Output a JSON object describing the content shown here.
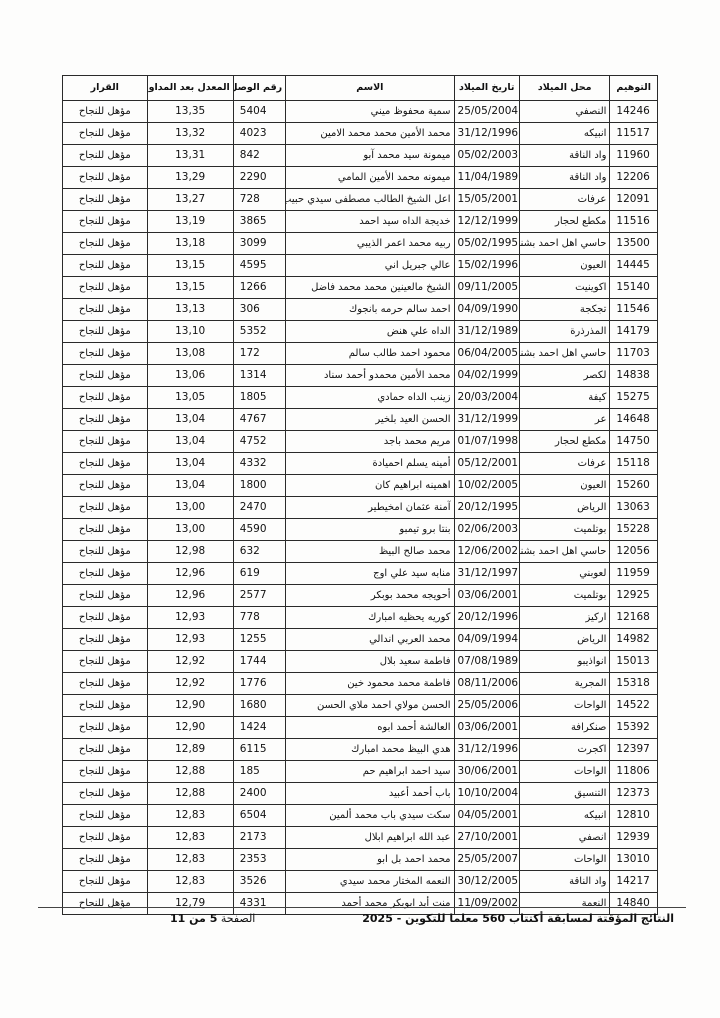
{
  "document": {
    "table": {
      "headers": [
        "التوهيم",
        "محل الميلاد",
        "تاريخ الميلاد",
        "الاسم",
        "رقم الوصل",
        "المعدل بعد المداولات",
        "القرار"
      ],
      "rows": [
        {
          "id": "14246",
          "birthplace": "النصفي",
          "birthdate": "25/05/2004",
          "name": "سمية محفوظ ميني",
          "receipt": "5404",
          "average": "13,35",
          "decision": "مؤهل للنجاح"
        },
        {
          "id": "11517",
          "birthplace": "انبيكه",
          "birthdate": "31/12/1996",
          "name": "محمد الأمين محمد محمد الامين",
          "receipt": "4023",
          "average": "13,32",
          "decision": "مؤهل للنجاح"
        },
        {
          "id": "11960",
          "birthplace": "واد الناقة",
          "birthdate": "05/02/2003",
          "name": "ميمونة سيد محمد آبو",
          "receipt": "842",
          "average": "13,31",
          "decision": "مؤهل للنجاح"
        },
        {
          "id": "12206",
          "birthplace": "واد الناقة",
          "birthdate": "11/04/1989",
          "name": "ميمونه محمد الأمين المامي",
          "receipt": "2290",
          "average": "13,29",
          "decision": "مؤهل للنجاح"
        },
        {
          "id": "12091",
          "birthplace": "عرفات",
          "birthdate": "15/05/2001",
          "name": "اعل الشيخ الطالب مصطفى سيدي حبيب الله",
          "receipt": "728",
          "average": "13,27",
          "decision": "مؤهل للنجاح"
        },
        {
          "id": "11516",
          "birthplace": "مكطع لحجار",
          "birthdate": "12/12/1999",
          "name": "خديجة الداه سيد احمد",
          "receipt": "3865",
          "average": "13,19",
          "decision": "مؤهل للنجاح"
        },
        {
          "id": "13500",
          "birthplace": "حاسي اهل احمد بشنه",
          "birthdate": "05/02/1995",
          "name": "ربيه محمد اعمر الذيبي",
          "receipt": "3099",
          "average": "13,18",
          "decision": "مؤهل للنجاح"
        },
        {
          "id": "14445",
          "birthplace": "العيون",
          "birthdate": "15/02/1996",
          "name": "عالي جبريل اني",
          "receipt": "4595",
          "average": "13,15",
          "decision": "مؤهل للنجاح"
        },
        {
          "id": "15140",
          "birthplace": "اكوينيت",
          "birthdate": "09/11/2005",
          "name": "الشيخ مالعينين محمد محمد فاضل",
          "receipt": "1266",
          "average": "13,15",
          "decision": "مؤهل للنجاح"
        },
        {
          "id": "11546",
          "birthplace": "تجكجة",
          "birthdate": "04/09/1990",
          "name": "احمد سالم حرمه بانجوك",
          "receipt": "306",
          "average": "13,13",
          "decision": "مؤهل للنجاح"
        },
        {
          "id": "14179",
          "birthplace": "المذرذرة",
          "birthdate": "31/12/1989",
          "name": "الداه علي هنض",
          "receipt": "5352",
          "average": "13,10",
          "decision": "مؤهل للنجاح"
        },
        {
          "id": "11703",
          "birthplace": "حاسي اهل احمد بشنه",
          "birthdate": "06/04/2005",
          "name": "محمود احمد طالب سالم",
          "receipt": "172",
          "average": "13,08",
          "decision": "مؤهل للنجاح"
        },
        {
          "id": "14838",
          "birthplace": "لكصر",
          "birthdate": "04/02/1999",
          "name": "محمد الأمين محمدو أحمد سناد",
          "receipt": "1314",
          "average": "13,06",
          "decision": "مؤهل للنجاح"
        },
        {
          "id": "15275",
          "birthplace": "كيفة",
          "birthdate": "20/03/2004",
          "name": "زينب الداه حمادي",
          "receipt": "1805",
          "average": "13,05",
          "decision": "مؤهل للنجاح"
        },
        {
          "id": "14648",
          "birthplace": "عر",
          "birthdate": "31/12/1999",
          "name": "الحسن العيد بلخير",
          "receipt": "4767",
          "average": "13,04",
          "decision": "مؤهل للنجاح"
        },
        {
          "id": "14750",
          "birthplace": "مكطع لحجار",
          "birthdate": "01/07/1998",
          "name": "مريم محمد باجد",
          "receipt": "4752",
          "average": "13,04",
          "decision": "مؤهل للنجاح"
        },
        {
          "id": "15118",
          "birthplace": "عرفات",
          "birthdate": "05/12/2001",
          "name": "أمينه يسلم احميادة",
          "receipt": "4332",
          "average": "13,04",
          "decision": "مؤهل للنجاح"
        },
        {
          "id": "15260",
          "birthplace": "العيون",
          "birthdate": "10/02/2005",
          "name": "اهمينه ابراهيم كان",
          "receipt": "1800",
          "average": "13,04",
          "decision": "مؤهل للنجاح"
        },
        {
          "id": "13063",
          "birthplace": "الرياض",
          "birthdate": "20/12/1995",
          "name": "آمنة عثمان امخيطير",
          "receipt": "2470",
          "average": "13,00",
          "decision": "مؤهل للنجاح"
        },
        {
          "id": "15228",
          "birthplace": "بوتلميت",
          "birthdate": "02/06/2003",
          "name": "بنتا برو تيمبو",
          "receipt": "4590",
          "average": "13,00",
          "decision": "مؤهل للنجاح"
        },
        {
          "id": "12056",
          "birthplace": "حاسي اهل احمد بشنه",
          "birthdate": "12/06/2002",
          "name": "محمد صالح البيظ",
          "receipt": "632",
          "average": "12,98",
          "decision": "مؤهل للنجاح"
        },
        {
          "id": "11959",
          "birthplace": "لعوبني",
          "birthdate": "31/12/1997",
          "name": "منابه سيد علي اوج",
          "receipt": "619",
          "average": "12,96",
          "decision": "مؤهل للنجاح"
        },
        {
          "id": "12925",
          "birthplace": "بوتلميت",
          "birthdate": "03/06/2001",
          "name": "أحويجه محمد بوبكر",
          "receipt": "2577",
          "average": "12,96",
          "decision": "مؤهل للنجاح"
        },
        {
          "id": "12168",
          "birthplace": "اركيز",
          "birthdate": "20/12/1996",
          "name": "كوريه يحظيه امبارك",
          "receipt": "778",
          "average": "12,93",
          "decision": "مؤهل للنجاح"
        },
        {
          "id": "14982",
          "birthplace": "الرياض",
          "birthdate": "04/09/1994",
          "name": "محمد العربي اندالي",
          "receipt": "1255",
          "average": "12,93",
          "decision": "مؤهل للنجاح"
        },
        {
          "id": "15013",
          "birthplace": "انواذيبو",
          "birthdate": "07/08/1989",
          "name": "فاطمة سعيد بلال",
          "receipt": "1744",
          "average": "12,92",
          "decision": "مؤهل للنجاح"
        },
        {
          "id": "15318",
          "birthplace": "المجرية",
          "birthdate": "08/11/2006",
          "name": "فاطمة محمد محمود خين",
          "receipt": "1776",
          "average": "12,92",
          "decision": "مؤهل للنجاح"
        },
        {
          "id": "14522",
          "birthplace": "الواحات",
          "birthdate": "25/05/2006",
          "name": "الحسن مولاي احمد ملاي الحسن",
          "receipt": "1680",
          "average": "12,90",
          "decision": "مؤهل للنجاح"
        },
        {
          "id": "15392",
          "birthplace": "صنكرافة",
          "birthdate": "03/06/2001",
          "name": "العالشة أحمد ابوه",
          "receipt": "1424",
          "average": "12,90",
          "decision": "مؤهل للنجاح"
        },
        {
          "id": "12397",
          "birthplace": "اكجرت",
          "birthdate": "31/12/1996",
          "name": "هدي البيظ محمد امبارك",
          "receipt": "6115",
          "average": "12,89",
          "decision": "مؤهل للنجاح"
        },
        {
          "id": "11806",
          "birthplace": "الواحات",
          "birthdate": "30/06/2001",
          "name": "سيد احمد ابراهيم حم",
          "receipt": "185",
          "average": "12,88",
          "decision": "مؤهل للنجاح"
        },
        {
          "id": "12373",
          "birthplace": "التنسيق",
          "birthdate": "10/10/2004",
          "name": "باب أحمد أعبيد",
          "receipt": "2400",
          "average": "12,88",
          "decision": "مؤهل للنجاح"
        },
        {
          "id": "12810",
          "birthplace": "انبيكه",
          "birthdate": "04/05/2001",
          "name": "سكت سيدي باب محمد ألمين",
          "receipt": "6504",
          "average": "12,83",
          "decision": "مؤهل للنجاح"
        },
        {
          "id": "12939",
          "birthplace": "انصفي",
          "birthdate": "27/10/2001",
          "name": "عبد الله ابراهيم ابلال",
          "receipt": "2173",
          "average": "12,83",
          "decision": "مؤهل للنجاح"
        },
        {
          "id": "13010",
          "birthplace": "الواحات",
          "birthdate": "25/05/2007",
          "name": "محمد احمد بل ابو",
          "receipt": "2353",
          "average": "12,83",
          "decision": "مؤهل للنجاح"
        },
        {
          "id": "14217",
          "birthplace": "واد الناقة",
          "birthdate": "30/12/2005",
          "name": "النعمه المختار محمد سيدي",
          "receipt": "3526",
          "average": "12,83",
          "decision": "مؤهل للنجاح"
        },
        {
          "id": "14840",
          "birthplace": "النعمة",
          "birthdate": "11/09/2002",
          "name": "منت أيد ابوبكر محمد أحمد",
          "receipt": "4331",
          "average": "12,79",
          "decision": "مؤهل للنجاح"
        }
      ]
    },
    "footer": {
      "title": "النتائج المؤقتة لمسابقة أكتتاب 560 معلما للتكوين - 2025",
      "page_prefix": "الصفحة",
      "page_value": "5 من 11"
    }
  }
}
